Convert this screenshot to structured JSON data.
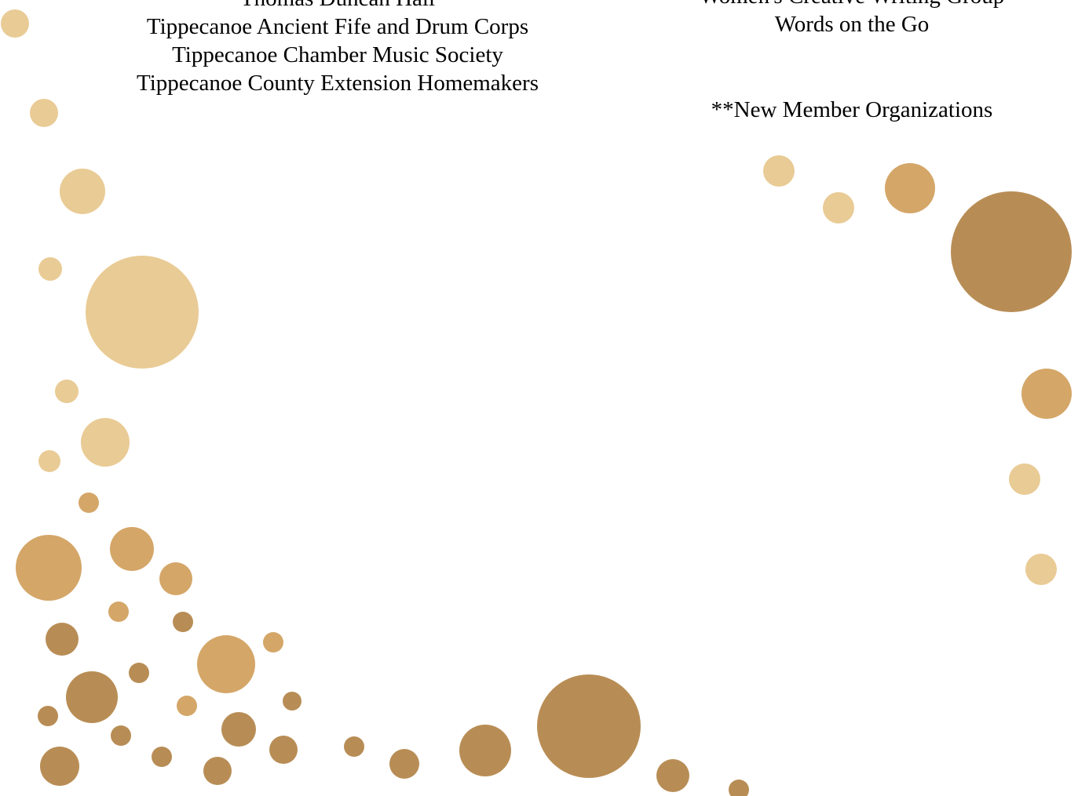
{
  "left_column": {
    "lines": [
      "Thomas Duncan Hall",
      "Tippecanoe Ancient Fife and Drum Corps",
      "Tippecanoe Chamber Music Society",
      "Tippecanoe County Extension Homemakers"
    ]
  },
  "right_column": {
    "lines": [
      "Women's Creative Writing Group",
      "Words on the Go"
    ],
    "note": "**New Member Organizations"
  },
  "decoration": {
    "colors": {
      "light": "#e9cb95",
      "medium": "#d4a668",
      "dark": "#b88d55"
    }
  }
}
